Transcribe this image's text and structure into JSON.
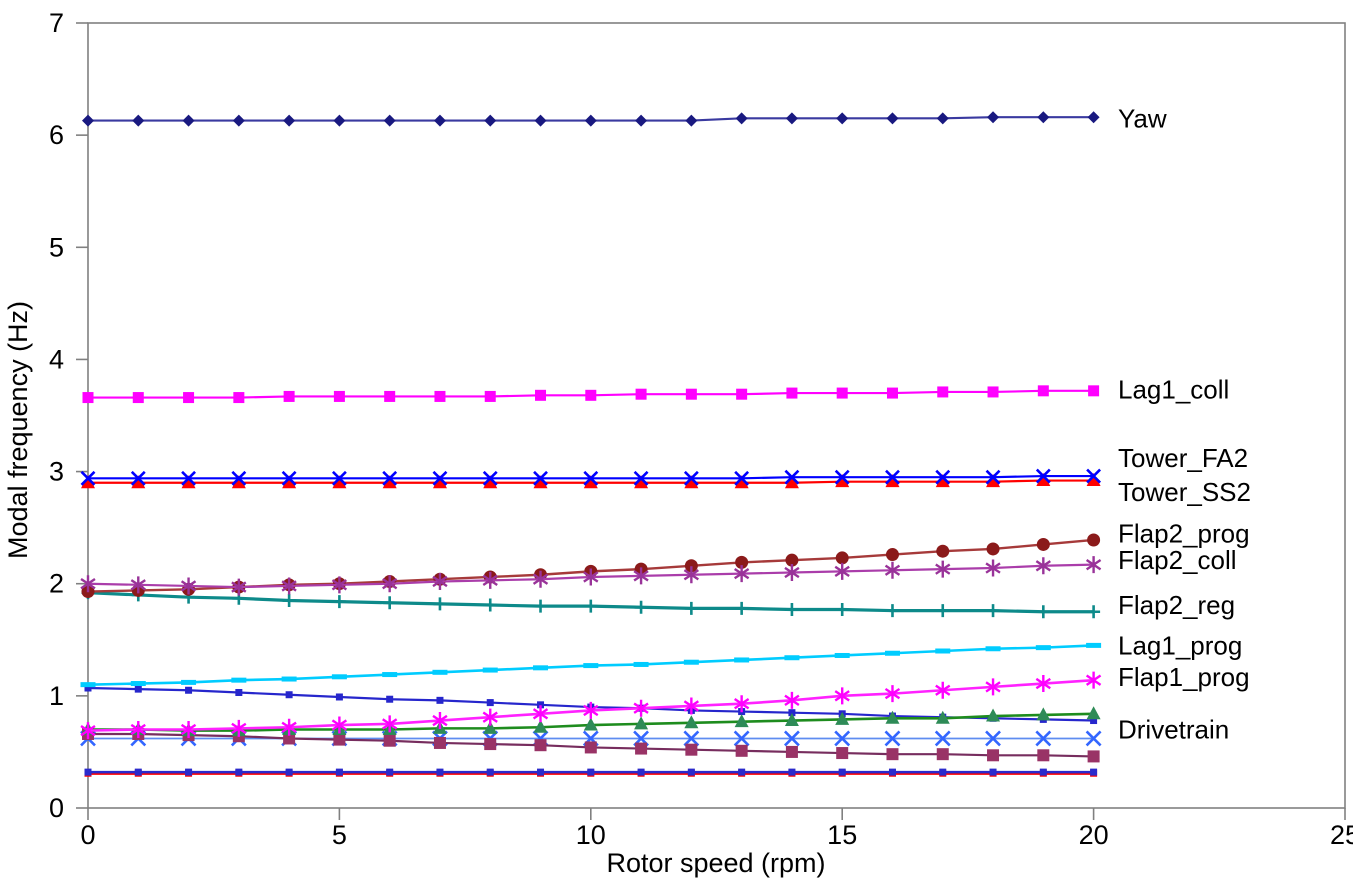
{
  "chart_data": {
    "type": "line",
    "title": "",
    "xlabel": "Rotor speed (rpm)",
    "ylabel": "Modal frequency (Hz)",
    "xlim": [
      0,
      25
    ],
    "ylim": [
      0,
      7
    ],
    "x_ticks": [
      0,
      5,
      10,
      15,
      20,
      25
    ],
    "y_ticks": [
      0,
      1,
      2,
      3,
      4,
      5,
      6,
      7
    ],
    "grid": false,
    "legend_position": "inline-right-labels",
    "axis_color": "#808080",
    "x": [
      0,
      1,
      2,
      3,
      4,
      5,
      6,
      7,
      8,
      9,
      10,
      11,
      12,
      13,
      14,
      15,
      16,
      17,
      18,
      19,
      20
    ],
    "series": [
      {
        "name": "red_constant_unlabeled",
        "label": "",
        "marker": "square-small",
        "marker_size": 7,
        "marker_color": "#FF0000",
        "line_color": "#FF0000",
        "line_width": 3.4,
        "values": [
          0.31,
          0.31,
          0.31,
          0.31,
          0.31,
          0.31,
          0.31,
          0.31,
          0.31,
          0.31,
          0.31,
          0.31,
          0.31,
          0.31,
          0.31,
          0.31,
          0.31,
          0.31,
          0.31,
          0.31,
          0.31
        ]
      },
      {
        "name": "blue_constant_unlabeled",
        "label": "",
        "marker": "square-small",
        "marker_size": 7,
        "marker_color": "#2A2ACC",
        "line_color": "#2A2ACC",
        "line_width": 2.6,
        "values": [
          0.32,
          0.32,
          0.32,
          0.32,
          0.32,
          0.32,
          0.32,
          0.32,
          0.32,
          0.32,
          0.32,
          0.32,
          0.32,
          0.32,
          0.32,
          0.32,
          0.32,
          0.32,
          0.32,
          0.32,
          0.32
        ]
      },
      {
        "name": "Drivetrain",
        "label": "Drivetrain",
        "marker": "x",
        "marker_size": 14,
        "marker_color": "#3366FF",
        "line_color": "#5E8CF0",
        "line_width": 1.8,
        "values": [
          0.62,
          0.62,
          0.62,
          0.62,
          0.62,
          0.62,
          0.62,
          0.62,
          0.62,
          0.62,
          0.62,
          0.62,
          0.62,
          0.62,
          0.62,
          0.62,
          0.62,
          0.62,
          0.62,
          0.62,
          0.62
        ]
      },
      {
        "name": "maroon_descending_unlabeled",
        "label": "",
        "marker": "square",
        "marker_size": 12,
        "marker_color": "#993366",
        "line_color": "#772D5E",
        "line_width": 2.2,
        "values": [
          0.66,
          0.66,
          0.65,
          0.64,
          0.62,
          0.61,
          0.6,
          0.58,
          0.57,
          0.56,
          0.54,
          0.53,
          0.52,
          0.51,
          0.5,
          0.49,
          0.48,
          0.48,
          0.47,
          0.47,
          0.46
        ]
      },
      {
        "name": "blue_descending_unlabeled",
        "label": "",
        "marker": "square-small",
        "marker_size": 7,
        "marker_color": "#2626CC",
        "line_color": "#2626CC",
        "line_width": 2.2,
        "values": [
          1.07,
          1.06,
          1.05,
          1.03,
          1.01,
          0.99,
          0.97,
          0.96,
          0.94,
          0.92,
          0.9,
          0.89,
          0.87,
          0.86,
          0.85,
          0.84,
          0.82,
          0.81,
          0.8,
          0.79,
          0.78
        ]
      },
      {
        "name": "green_triangle_unlabeled",
        "label": "",
        "marker": "triangle",
        "marker_size": 13,
        "marker_color": "#2E8B57",
        "line_color": "#1E8C1E",
        "line_width": 2.6,
        "values": [
          0.7,
          0.7,
          0.69,
          0.69,
          0.7,
          0.7,
          0.7,
          0.71,
          0.71,
          0.72,
          0.74,
          0.75,
          0.76,
          0.77,
          0.78,
          0.79,
          0.8,
          0.8,
          0.82,
          0.83,
          0.84
        ]
      },
      {
        "name": "Flap1_prog",
        "label": "Flap1_prog",
        "marker": "asterisk",
        "marker_size": 17,
        "marker_color": "#FF00FF",
        "line_color": "#FF22FF",
        "line_width": 2.6,
        "values": [
          0.69,
          0.7,
          0.7,
          0.71,
          0.72,
          0.74,
          0.75,
          0.78,
          0.81,
          0.84,
          0.87,
          0.89,
          0.91,
          0.93,
          0.96,
          1.0,
          1.02,
          1.05,
          1.08,
          1.11,
          1.14
        ]
      },
      {
        "name": "Lag1_prog",
        "label": "Lag1_prog",
        "marker": "dash",
        "marker_size": 15,
        "marker_color": "#00CCFF",
        "line_color": "#00CCFF",
        "line_width": 2.6,
        "values": [
          1.1,
          1.11,
          1.12,
          1.14,
          1.15,
          1.17,
          1.19,
          1.21,
          1.23,
          1.25,
          1.27,
          1.28,
          1.3,
          1.32,
          1.34,
          1.36,
          1.38,
          1.4,
          1.42,
          1.43,
          1.45
        ]
      },
      {
        "name": "Flap2_reg",
        "label": "Flap2_reg",
        "marker": "plus",
        "marker_size": 13,
        "marker_color": "#0D8A8A",
        "line_color": "#0D8A8A",
        "line_width": 3.2,
        "values": [
          1.92,
          1.9,
          1.88,
          1.87,
          1.85,
          1.84,
          1.83,
          1.82,
          1.81,
          1.8,
          1.8,
          1.79,
          1.78,
          1.78,
          1.77,
          1.77,
          1.76,
          1.76,
          1.76,
          1.75,
          1.75
        ]
      },
      {
        "name": "Flap2_prog",
        "label": "Flap2_prog",
        "marker": "circle",
        "marker_size": 13,
        "marker_color": "#8B1A1A",
        "line_color": "#A63A3A",
        "line_width": 2.4,
        "values": [
          1.93,
          1.94,
          1.95,
          1.97,
          1.99,
          2.0,
          2.02,
          2.04,
          2.06,
          2.08,
          2.11,
          2.13,
          2.16,
          2.19,
          2.21,
          2.23,
          2.26,
          2.29,
          2.31,
          2.35,
          2.39
        ]
      },
      {
        "name": "Flap2_coll",
        "label": "Flap2_coll",
        "marker": "asterisk",
        "marker_size": 17,
        "marker_color": "#993399",
        "line_color": "#AA3DAA",
        "line_width": 2.2,
        "values": [
          2.0,
          1.99,
          1.98,
          1.97,
          1.98,
          1.99,
          2.0,
          2.02,
          2.03,
          2.04,
          2.06,
          2.07,
          2.08,
          2.09,
          2.1,
          2.11,
          2.12,
          2.13,
          2.14,
          2.16,
          2.17
        ]
      },
      {
        "name": "Tower_SS2",
        "label": "Tower_SS2",
        "marker": "triangle",
        "marker_size": 13,
        "marker_color": "#FF0000",
        "line_color": "#FF0000",
        "line_width": 2.2,
        "values": [
          2.9,
          2.9,
          2.9,
          2.9,
          2.9,
          2.9,
          2.9,
          2.9,
          2.9,
          2.9,
          2.9,
          2.9,
          2.9,
          2.9,
          2.9,
          2.91,
          2.91,
          2.91,
          2.91,
          2.92,
          2.92
        ]
      },
      {
        "name": "Tower_FA2",
        "label": "Tower_FA2",
        "marker": "x",
        "marker_size": 13,
        "marker_color": "#0000FF",
        "line_color": "#0000FF",
        "line_width": 2.2,
        "values": [
          2.94,
          2.94,
          2.94,
          2.94,
          2.94,
          2.94,
          2.94,
          2.94,
          2.94,
          2.94,
          2.94,
          2.94,
          2.94,
          2.94,
          2.95,
          2.95,
          2.95,
          2.95,
          2.95,
          2.96,
          2.96
        ]
      },
      {
        "name": "Lag1_coll",
        "label": "Lag1_coll",
        "marker": "square",
        "marker_size": 11,
        "marker_color": "#FF00FF",
        "line_color": "#FF00FF",
        "line_width": 2.2,
        "values": [
          3.66,
          3.66,
          3.66,
          3.66,
          3.67,
          3.67,
          3.67,
          3.67,
          3.67,
          3.68,
          3.68,
          3.69,
          3.69,
          3.69,
          3.7,
          3.7,
          3.7,
          3.71,
          3.71,
          3.72,
          3.72
        ]
      },
      {
        "name": "Yaw",
        "label": "Yaw",
        "marker": "diamond",
        "marker_size": 12,
        "marker_color": "#191980",
        "line_color": "#3A3AA0",
        "line_width": 2.2,
        "values": [
          6.13,
          6.13,
          6.13,
          6.13,
          6.13,
          6.13,
          6.13,
          6.13,
          6.13,
          6.13,
          6.13,
          6.13,
          6.13,
          6.15,
          6.15,
          6.15,
          6.15,
          6.15,
          6.16,
          6.16,
          6.16
        ]
      }
    ],
    "annotations": [
      {
        "text": "Yaw",
        "y_hz": 6.15
      },
      {
        "text": "Lag1_coll",
        "y_hz": 3.73
      },
      {
        "text": "Tower_FA2",
        "y_hz": 3.12
      },
      {
        "text": "Tower_SS2",
        "y_hz": 2.82
      },
      {
        "text": "Flap2_prog",
        "y_hz": 2.45
      },
      {
        "text": "Flap2_coll",
        "y_hz": 2.21
      },
      {
        "text": "Flap2_reg",
        "y_hz": 1.81
      },
      {
        "text": "Lag1_prog",
        "y_hz": 1.45
      },
      {
        "text": "Flap1_prog",
        "y_hz": 1.17
      },
      {
        "text": "Drivetrain",
        "y_hz": 0.7
      }
    ]
  }
}
